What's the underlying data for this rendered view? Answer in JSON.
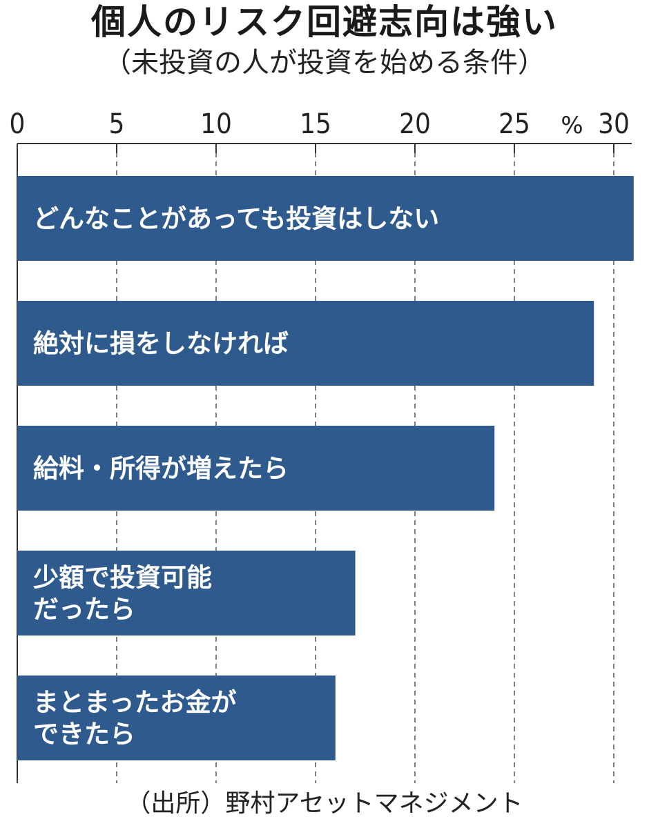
{
  "header": {
    "title": "個人のリスク回避志向は強い",
    "subtitle": "（未投資の人が投資を始める条件）"
  },
  "footer": {
    "source": "（出所）野村アセットマネジメント"
  },
  "colors": {
    "bar": "#2f5a8e",
    "grid": "#555555",
    "axis": "#333333",
    "text": "#222222"
  },
  "chart_data": {
    "type": "bar",
    "orientation": "horizontal",
    "unit": "%",
    "xlim": [
      0,
      31
    ],
    "ticks": [
      0,
      5,
      10,
      15,
      20,
      25,
      30
    ],
    "grid": "vertical-dashed",
    "categories": [
      [
        "どんなことがあっても投資はしない"
      ],
      [
        "絶対に損をしなければ"
      ],
      [
        "給料・所得が増えたら"
      ],
      [
        "少額で投資可能",
        "だったら"
      ],
      [
        "まとまったお金が",
        "できたら"
      ]
    ],
    "values": [
      31,
      29,
      24,
      17,
      16
    ]
  }
}
